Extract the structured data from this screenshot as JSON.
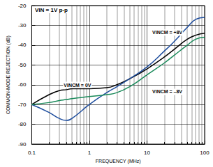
{
  "chart_data": {
    "type": "line",
    "title": "VIN = 1V p-p",
    "x_label": "FREQUENCY (MHz)",
    "y_label": "COMMON-MODE REJECTION (dB)",
    "log": "x",
    "grid": true,
    "xlim": [
      0.1,
      100
    ],
    "xticks": [
      0.1,
      1,
      10,
      100
    ],
    "ylim": [
      -90,
      -20
    ],
    "yticks": [
      -90,
      -80,
      -70,
      -60,
      -50,
      -40,
      -30,
      -20
    ],
    "x": [
      0.1,
      0.2,
      0.3,
      0.4,
      0.5,
      1,
      2,
      3,
      5,
      10,
      20,
      30,
      50,
      70,
      100
    ],
    "series": [
      {
        "name": "VINCM = 0V",
        "color": "#000000",
        "label_at": [
          0.35,
          -58.5
        ],
        "values": [
          -70,
          -65,
          -63,
          -62.5,
          -62,
          -62,
          -61.5,
          -60,
          -57,
          -52,
          -46,
          -42,
          -37,
          -35,
          -34
        ]
      },
      {
        "name": "VINCM = +8V",
        "color": "#1f4e9e",
        "label_at": [
          12,
          -32
        ],
        "values": [
          -70,
          -74,
          -77,
          -78,
          -77,
          -70,
          -64,
          -61,
          -57,
          -51,
          -43,
          -38,
          -31,
          -27,
          -26
        ]
      },
      {
        "name": "VINCM = –8V",
        "color": "#1a8a5a",
        "label_at": [
          12,
          -62
        ],
        "values": [
          -70,
          -69,
          -68,
          -67.5,
          -67,
          -66,
          -65,
          -64,
          -61,
          -55,
          -49,
          -45,
          -40,
          -37,
          -36
        ]
      }
    ]
  }
}
